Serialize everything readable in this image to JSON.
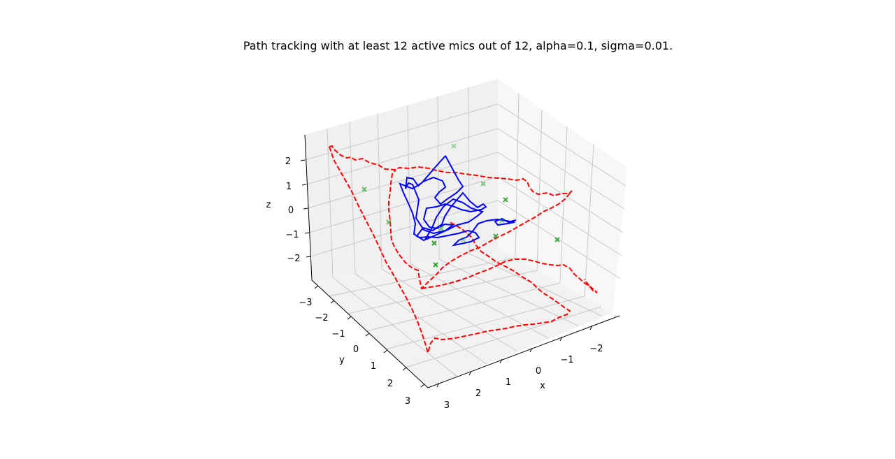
{
  "chart_data": {
    "type": "line3d",
    "title": "Path tracking with at least 12 active mics out of 12, alpha=0.1, sigma=0.01.",
    "axes": {
      "x": {
        "label": "x",
        "ticks": [
          "−2",
          "−1",
          "0",
          "1",
          "2",
          "3"
        ]
      },
      "y": {
        "label": "y",
        "ticks": [
          "−3",
          "−2",
          "−1",
          "0",
          "1",
          "2",
          "3"
        ]
      },
      "z": {
        "label": "z",
        "ticks": [
          "2",
          "1",
          "0",
          "−1",
          "−2"
        ]
      }
    },
    "grid": true,
    "series": [
      {
        "kind": "true-path",
        "style": "dashed",
        "color": "#ff0000",
        "description_points": "approximate true source path (red dashed)"
      },
      {
        "kind": "estimated-path",
        "style": "solid",
        "color": "#0000ff"
      },
      {
        "kind": "microphones",
        "marker": "x",
        "color": "#2ca02c",
        "count": 12
      }
    ]
  },
  "colors": {
    "pane_back": "#f0f0f0",
    "pane_side": "#f7f7f7",
    "pane_floor": "#f2f2f2",
    "grid": "#c8c8c8",
    "true_path": "#ff0000",
    "estimate": "#0000ff",
    "mics": "#2ca02c"
  }
}
